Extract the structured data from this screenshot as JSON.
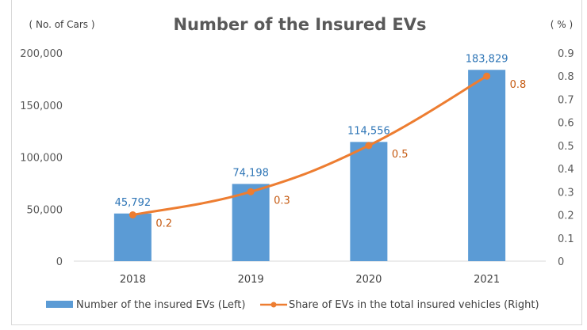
{
  "chart_data": {
    "type": "bar+line",
    "title": "Number of the Insured EVs",
    "left_unit_label": "( No. of Cars )",
    "right_unit_label": "( % )",
    "categories": [
      "2018",
      "2019",
      "2020",
      "2021"
    ],
    "series": [
      {
        "name": "Number of the insured EVs (Left)",
        "type": "bar",
        "axis": "left",
        "color": "#5b9bd5",
        "values": [
          45792,
          74198,
          114556,
          183829
        ],
        "labels": [
          "45,792",
          "74,198",
          "114,556",
          "183,829"
        ]
      },
      {
        "name": "Share of EVs in the total insured vehicles (Right)",
        "type": "line",
        "axis": "right",
        "color": "#ed7d31",
        "values": [
          0.2,
          0.3,
          0.5,
          0.8
        ],
        "labels": [
          "0.2",
          "0.3",
          "0.5",
          "0.8"
        ]
      }
    ],
    "y_left": {
      "range": [
        0,
        200000
      ],
      "ticks": [
        0,
        50000,
        100000,
        150000,
        200000
      ],
      "tick_labels": [
        "0",
        "50,000",
        "100,000",
        "150,000",
        "200,000"
      ]
    },
    "y_right": {
      "range": [
        0,
        0.9
      ],
      "ticks": [
        0,
        0.1,
        0.2,
        0.3,
        0.4,
        0.5,
        0.6,
        0.7,
        0.8,
        0.9
      ],
      "tick_labels": [
        "0",
        "0.1",
        "0.2",
        "0.3",
        "0.4",
        "0.5",
        "0.6",
        "0.7",
        "0.8",
        "0.9"
      ]
    },
    "grid": false,
    "legend_position": "bottom"
  }
}
